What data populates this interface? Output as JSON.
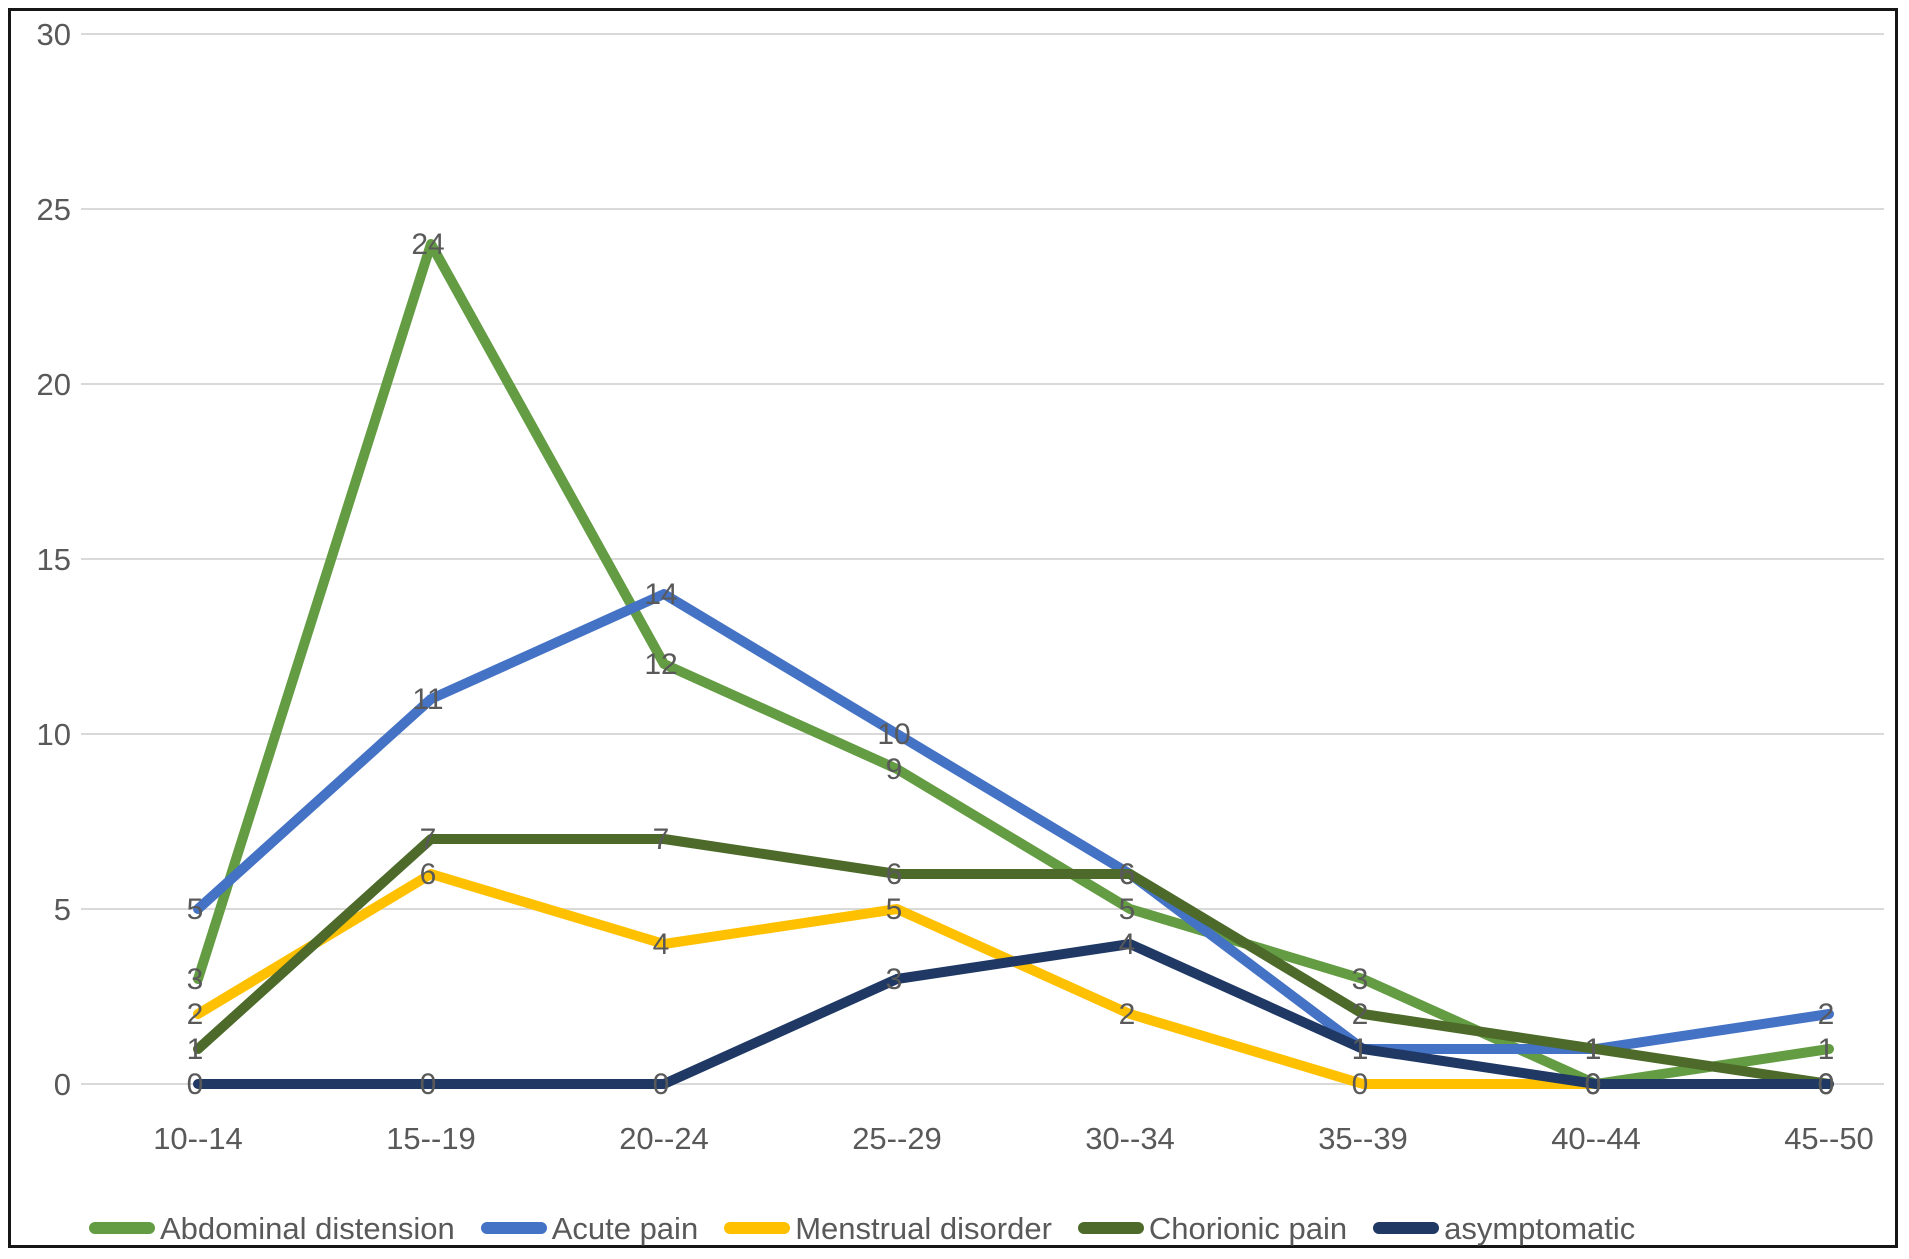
{
  "chart_data": {
    "type": "line",
    "title": "",
    "categories": [
      "10--14",
      "15--19",
      "20--24",
      "25--29",
      "30--34",
      "35--39",
      "40--44",
      "45--50"
    ],
    "series": [
      {
        "name": "Abdominal distension",
        "color": "#639C42",
        "values": [
          3,
          24,
          12,
          9,
          5,
          3,
          0,
          1
        ]
      },
      {
        "name": "Acute pain",
        "color": "#4472C4",
        "values": [
          5,
          11,
          14,
          10,
          6,
          1,
          1,
          2
        ]
      },
      {
        "name": "Menstrual disorder",
        "color": "#FFC000",
        "values": [
          2,
          6,
          4,
          5,
          2,
          0,
          0,
          0
        ]
      },
      {
        "name": "Chorionic pain",
        "color": "#4D6A2A",
        "values": [
          1,
          7,
          7,
          6,
          6,
          2,
          1,
          0
        ]
      },
      {
        "name": "asymptomatic",
        "color": "#1F3864",
        "values": [
          0,
          0,
          0,
          3,
          4,
          1,
          0,
          0
        ]
      }
    ],
    "y_ticks": [
      0,
      5,
      10,
      15,
      20,
      25,
      30
    ],
    "ylim": [
      0,
      30
    ],
    "xlabel": "",
    "ylabel": "",
    "grid": true,
    "grid_color": "#D9D9D9",
    "data_labels": true,
    "data_label_color": "#595959",
    "axis_label_color": "#595959",
    "legend_position": "bottom",
    "line_width": 10
  }
}
